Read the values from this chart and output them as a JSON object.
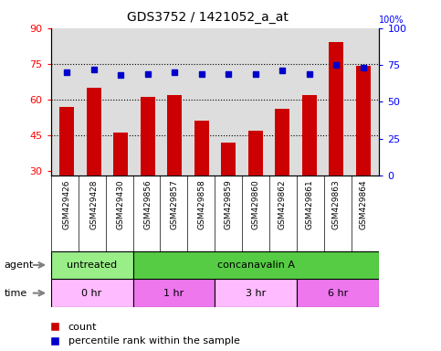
{
  "title": "GDS3752 / 1421052_a_at",
  "samples": [
    "GSM429426",
    "GSM429428",
    "GSM429430",
    "GSM429856",
    "GSM429857",
    "GSM429858",
    "GSM429859",
    "GSM429860",
    "GSM429862",
    "GSM429861",
    "GSM429863",
    "GSM429864"
  ],
  "counts": [
    57,
    65,
    46,
    61,
    62,
    51,
    42,
    47,
    56,
    62,
    84,
    74
  ],
  "percentile_ranks": [
    70,
    72,
    68,
    69,
    70,
    69,
    69,
    69,
    71,
    69,
    75,
    73
  ],
  "ylim_left": [
    28,
    90
  ],
  "ylim_right": [
    0,
    100
  ],
  "yticks_left": [
    30,
    45,
    60,
    75,
    90
  ],
  "yticks_right": [
    0,
    25,
    50,
    75,
    100
  ],
  "bar_color": "#cc0000",
  "dot_color": "#0000cc",
  "grid_lines": [
    45,
    60,
    75
  ],
  "agent_groups": [
    {
      "label": "untreated",
      "start": 0,
      "end": 3,
      "color": "#99ee88"
    },
    {
      "label": "concanavalin A",
      "start": 3,
      "end": 12,
      "color": "#55cc44"
    }
  ],
  "time_groups": [
    {
      "label": "0 hr",
      "start": 0,
      "end": 3,
      "color": "#ffbbff"
    },
    {
      "label": "1 hr",
      "start": 3,
      "end": 6,
      "color": "#ee77ee"
    },
    {
      "label": "3 hr",
      "start": 6,
      "end": 9,
      "color": "#ffbbff"
    },
    {
      "label": "6 hr",
      "start": 9,
      "end": 12,
      "color": "#ee77ee"
    }
  ],
  "bg_color": "#ffffff",
  "plot_bg_color": "#dddddd",
  "label_bg_color": "#cccccc"
}
